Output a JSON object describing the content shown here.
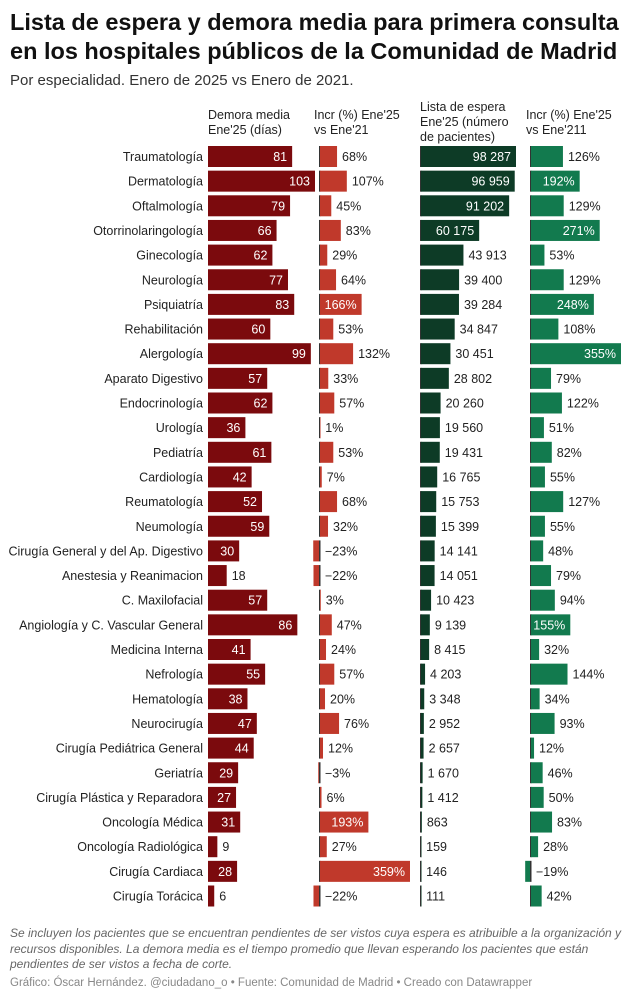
{
  "title": "Lista de espera y demora media para primera consulta en los hospitales públicos de la Comunidad de Madrid",
  "subtitle": "Por especialidad. Enero de 2025 vs Enero de 2021.",
  "columns": {
    "demora": "Demora media\nEne'25 (días)",
    "incr_demora": "Incr (%) Ene'25\nvs Ene'21",
    "lista": "Lista de espera\nEne'25 (número\nde pacientes)",
    "incr_lista": "Incr (%) Ene'25\nvs Ene'211"
  },
  "colors": {
    "demora": "#7b0a0d",
    "incr_demora": "#c0392b",
    "lista": "#0d3b26",
    "incr_lista": "#127a4e",
    "separator": "#333333"
  },
  "chart_data": {
    "type": "table",
    "categories": [
      "Traumatología",
      "Dermatología",
      "Oftalmología",
      "Otorrinolaringología",
      "Ginecología",
      "Neurología",
      "Psiquiatría",
      "Rehabilitación",
      "Alergología",
      "Aparato Digestivo",
      "Endocrinología",
      "Urología",
      "Pediatría",
      "Cardiología",
      "Reumatología",
      "Neumología",
      "Cirugía General y del Ap. Digestivo",
      "Anestesia y Reanimacion",
      "C. Maxilofacial",
      "Angiología y C. Vascular General",
      "Medicina Interna",
      "Nefrología",
      "Hematología",
      "Neurocirugía",
      "Cirugía Pediátrica General",
      "Geriatría",
      "Cirugía Plástica y Reparadora",
      "Oncología Médica",
      "Oncología Radiológica",
      "Cirugía Cardiaca",
      "Cirugía Torácica"
    ],
    "series": [
      {
        "name": "Demora media Ene'25 (días)",
        "values": [
          81,
          103,
          79,
          66,
          62,
          77,
          83,
          60,
          99,
          57,
          62,
          36,
          61,
          42,
          52,
          59,
          30,
          18,
          57,
          86,
          41,
          55,
          38,
          47,
          44,
          29,
          27,
          31,
          9,
          28,
          6
        ]
      },
      {
        "name": "Incr (%) Ene'25 vs Ene'21",
        "values": [
          68,
          107,
          45,
          83,
          29,
          64,
          166,
          53,
          132,
          33,
          57,
          1,
          53,
          7,
          68,
          32,
          -23,
          -22,
          3,
          47,
          24,
          57,
          20,
          76,
          12,
          -3,
          6,
          193,
          27,
          359,
          -22
        ]
      },
      {
        "name": "Lista de espera Ene'25 (número de pacientes)",
        "values": [
          98287,
          96959,
          91202,
          60175,
          43913,
          39400,
          39284,
          34847,
          30451,
          28802,
          20260,
          19560,
          19431,
          16765,
          15753,
          15399,
          14141,
          14051,
          10423,
          9139,
          8415,
          4203,
          3348,
          2952,
          2657,
          1670,
          1412,
          863,
          159,
          146,
          111
        ]
      },
      {
        "name": "Incr (%) Ene'25 vs Ene'211",
        "values": [
          126,
          192,
          129,
          271,
          53,
          129,
          248,
          108,
          355,
          79,
          122,
          51,
          82,
          55,
          127,
          55,
          48,
          79,
          94,
          155,
          32,
          144,
          34,
          93,
          12,
          46,
          50,
          83,
          28,
          -19,
          42
        ]
      }
    ],
    "labels": {
      "demora": [
        "81",
        "103",
        "79",
        "66",
        "62",
        "77",
        "83",
        "60",
        "99",
        "57",
        "62",
        "36",
        "61",
        "42",
        "52",
        "59",
        "30",
        "18",
        "57",
        "86",
        "41",
        "55",
        "38",
        "47",
        "44",
        "29",
        "27",
        "31",
        "9",
        "28",
        "6"
      ],
      "incr_demora": [
        "68%",
        "107%",
        "45%",
        "83%",
        "29%",
        "64%",
        "166%",
        "53%",
        "132%",
        "33%",
        "57%",
        "1%",
        "53%",
        "7%",
        "68%",
        "32%",
        "−23%",
        "−22%",
        "3%",
        "47%",
        "24%",
        "57%",
        "20%",
        "76%",
        "12%",
        "−3%",
        "6%",
        "193%",
        "27%",
        "359%",
        "−22%"
      ],
      "lista": [
        "98 287",
        "96 959",
        "91 202",
        "60 175",
        "43 913",
        "39 400",
        "39 284",
        "34 847",
        "30 451",
        "28 802",
        "20 260",
        "19 560",
        "19 431",
        "16 765",
        "15 753",
        "15 399",
        "14 141",
        "14 051",
        "10 423",
        "9 139",
        "8 415",
        "4 203",
        "3 348",
        "2 952",
        "2 657",
        "1 670",
        "1 412",
        "863",
        "159",
        "146",
        "111"
      ],
      "incr_lista": [
        "126%",
        "192%",
        "129%",
        "271%",
        "53%",
        "129%",
        "248%",
        "108%",
        "355%",
        "79%",
        "122%",
        "51%",
        "82%",
        "55%",
        "127%",
        "55%",
        "48%",
        "79%",
        "94%",
        "155%",
        "32%",
        "144%",
        "34%",
        "93%",
        "12%",
        "46%",
        "50%",
        "83%",
        "28%",
        "−19%",
        "42%"
      ]
    },
    "scales": {
      "demora_max": 103,
      "incr_demora_max": 359,
      "lista_max": 98287,
      "incr_lista_max": 355
    }
  },
  "footer": {
    "note": "Se incluyen los pacientes que se encuentran pendientes de ser vistos cuya espera es atribuible a la organización y recursos disponibles. La demora media es el tiempo promedio que llevan esperando los pacientes que están pendientes de ser vistos a fecha de corte.",
    "credit": "Gráfico: Óscar Hernández. @ciudadano_o • Fuente: Comunidad de Madrid • Creado con Datawrapper"
  }
}
